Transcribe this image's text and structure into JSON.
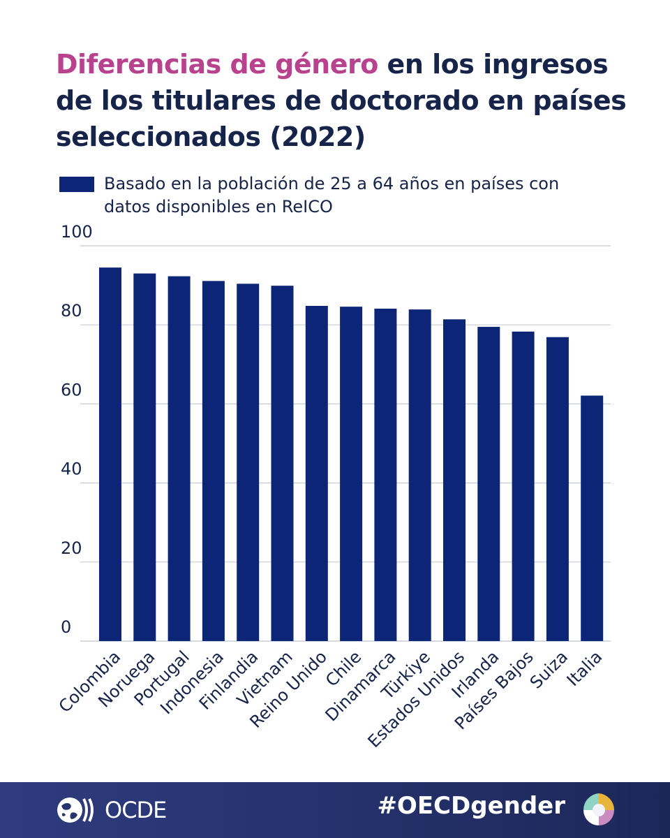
{
  "title": {
    "highlight": "Diferencias de género",
    "rest": " en los ingresos de los titulares de doctorado en países seleccionados (2022)"
  },
  "colors": {
    "bar": "#0d2577",
    "title": "#16244a",
    "highlight": "#b9428f",
    "grid": "#c8cbd8",
    "footer": "#2a3672"
  },
  "chart_data": {
    "type": "bar",
    "legend": "Basado en la población de 25 a 64 años en países con datos disponibles en ReICO",
    "legend_position": "top-left",
    "categories": [
      "Colombia",
      "Noruega",
      "Portugal",
      "Indonesia",
      "Finlandia",
      "Vietnam",
      "Reino Unido",
      "Chile",
      "Dinamarca",
      "Türkiye",
      "Estados Unidos",
      "Irlanda",
      "Países Bajos",
      "Suiza",
      "Italia"
    ],
    "values": [
      94.5,
      93,
      92.3,
      91.1,
      90.4,
      89.9,
      84.8,
      84.6,
      84.1,
      83.9,
      81.4,
      79.5,
      78.3,
      76.9,
      62.1
    ],
    "yticks": [
      "0",
      "20",
      "40",
      "60",
      "80",
      "100"
    ],
    "ylim": [
      0,
      100
    ],
    "grid": true
  },
  "footer": {
    "logo_text": "OCDE",
    "hashtag": "#OECDgender",
    "logo_icon": "oecd-globe-icon",
    "gender_icon": "oecd-gender-logo-icon"
  }
}
